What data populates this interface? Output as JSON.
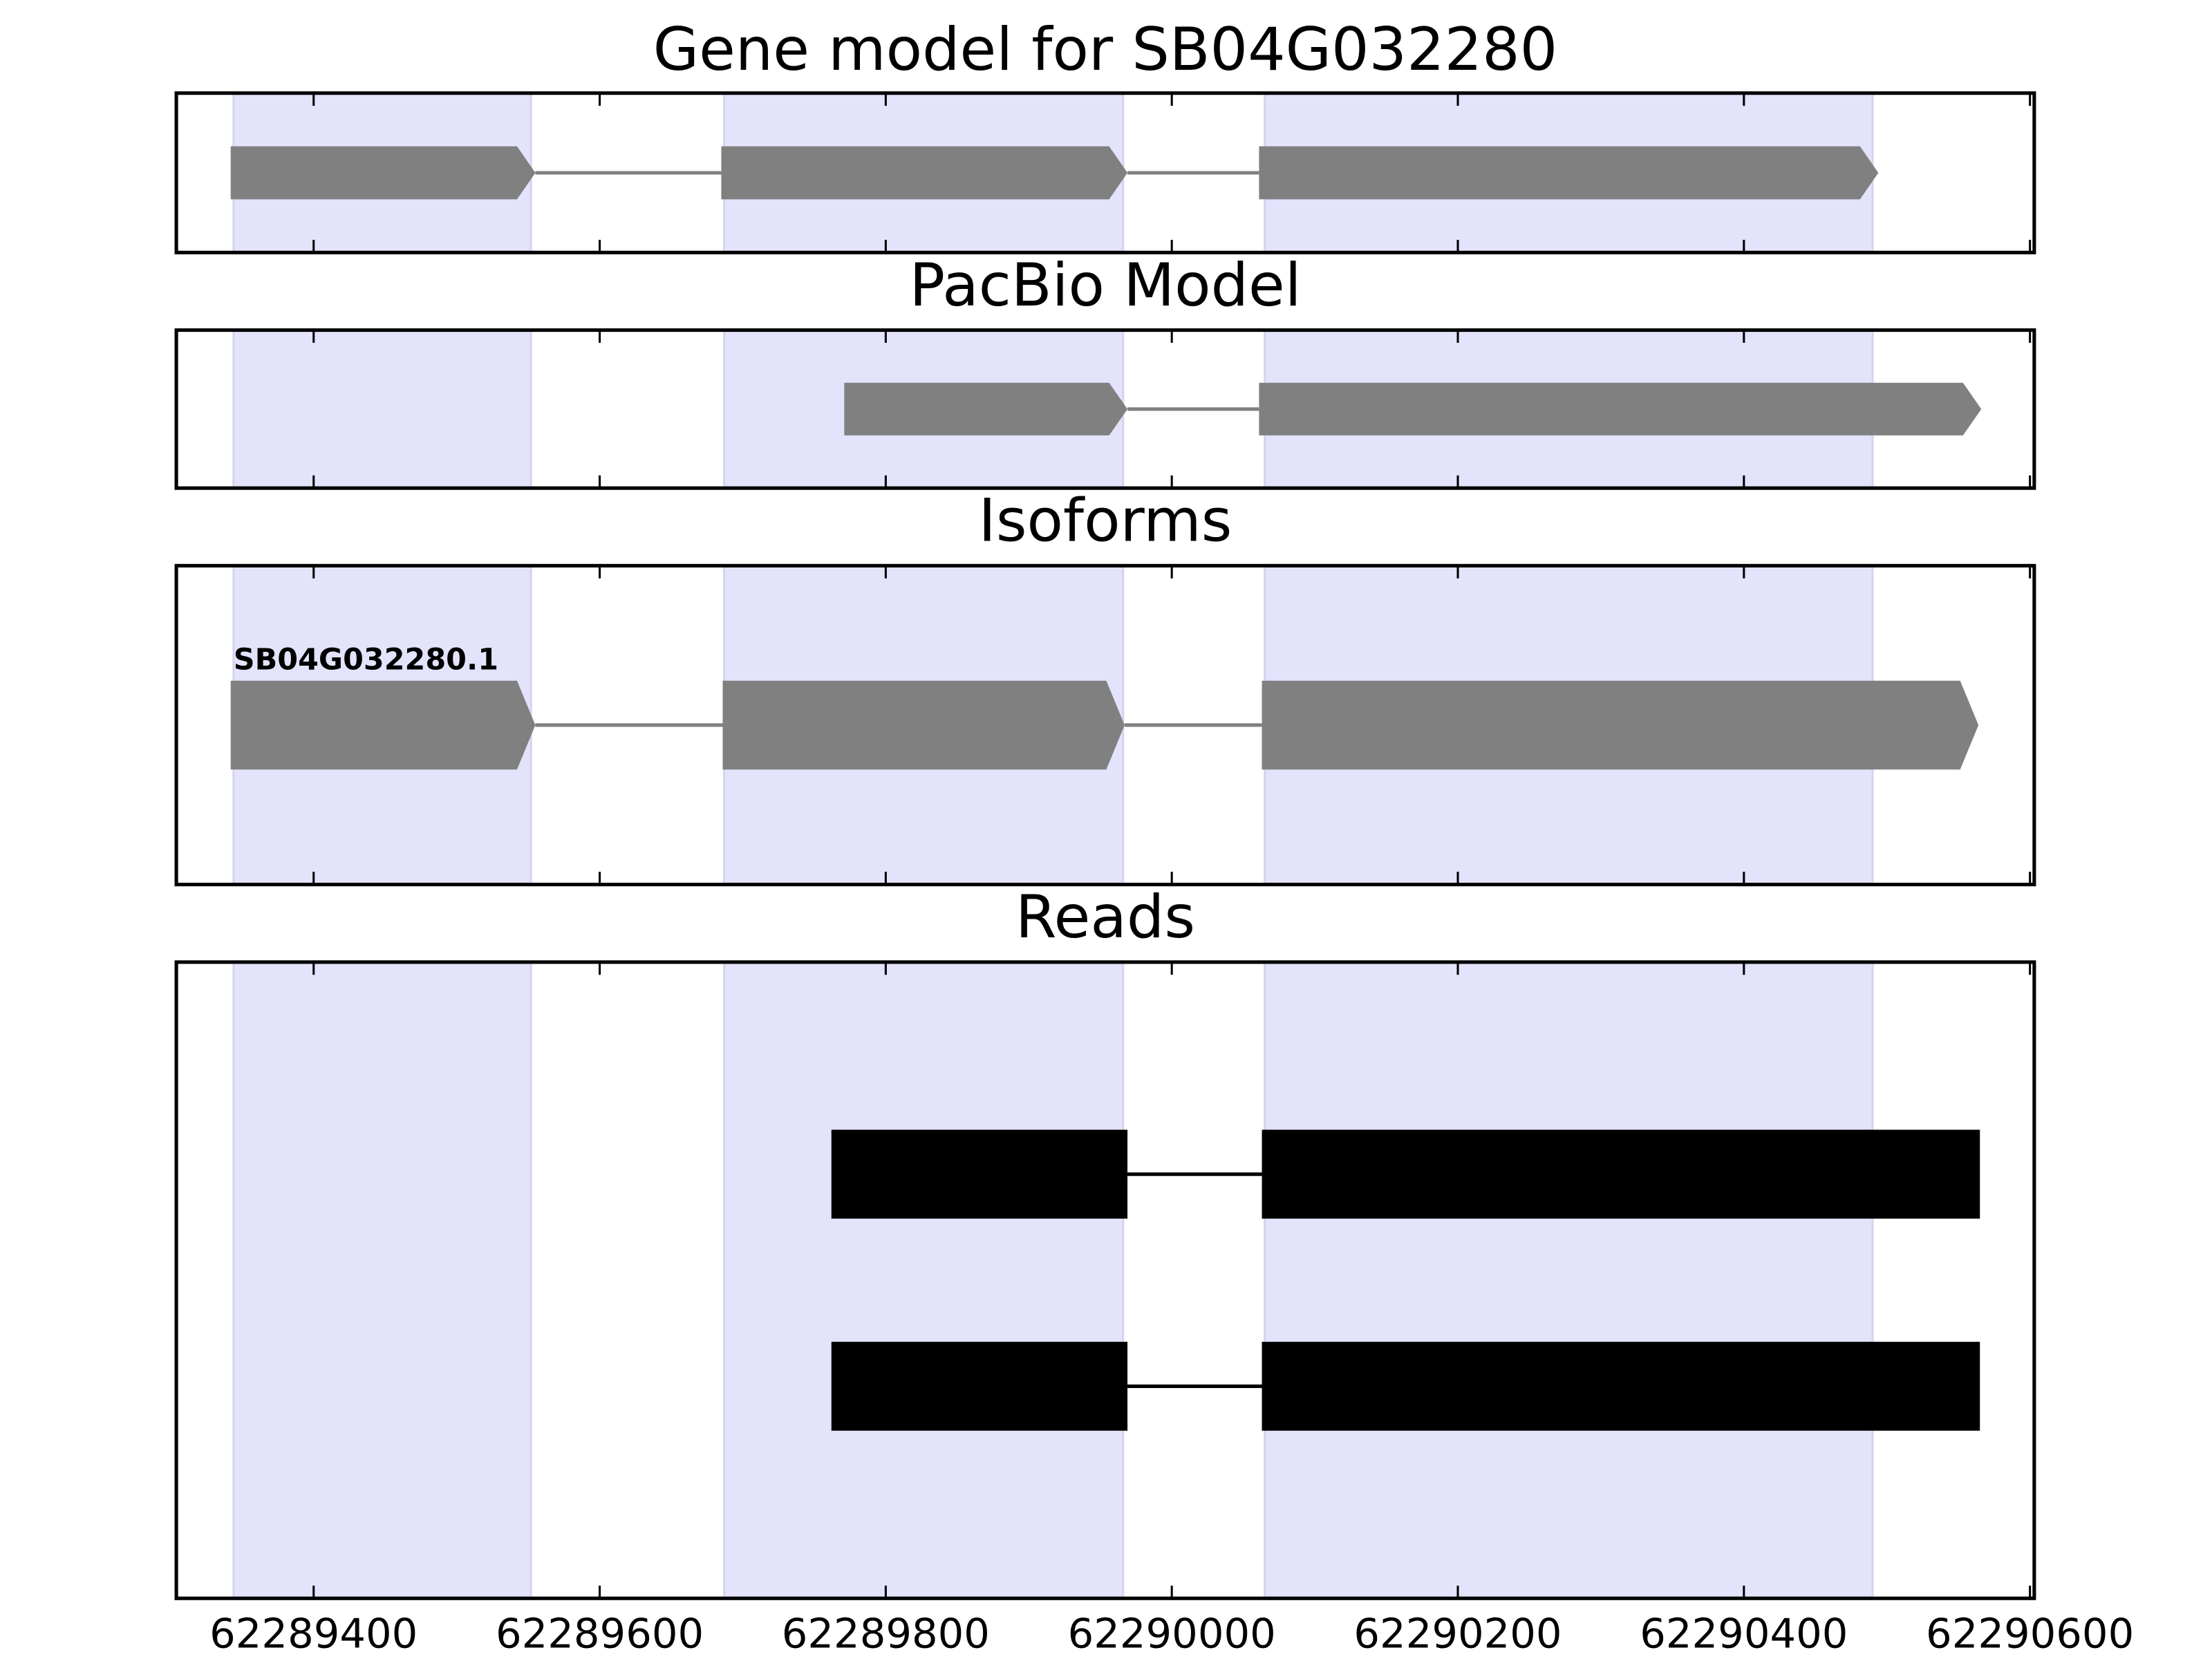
{
  "chart_data": {
    "type": "gene-tracks",
    "xlim": [
      62289304,
      62290603
    ],
    "xticks": [
      62289400,
      62289600,
      62289800,
      62290000,
      62290200,
      62290400,
      62290600
    ],
    "exon_regions": [
      [
        62289344,
        62289552
      ],
      [
        62289687,
        62289966
      ],
      [
        62290065,
        62290490
      ]
    ],
    "region_color": "#e3e3fc",
    "panels": [
      {
        "title": "Gene model for SB04G032280",
        "color": "#808080",
        "shape": "arrow",
        "features": [
          {
            "exons": [
              [
                62289342,
                62289555
              ],
              [
                62289685,
                62289969
              ],
              [
                62290061,
                62290494
              ]
            ]
          }
        ]
      },
      {
        "title": "PacBio Model",
        "color": "#808080",
        "shape": "arrow",
        "features": [
          {
            "exons": [
              [
                62289771,
                62289969
              ],
              [
                62290061,
                62290566
              ]
            ]
          }
        ]
      },
      {
        "title": "Isoforms",
        "color": "#808080",
        "shape": "arrow",
        "features": [
          {
            "label": "SB04G032280.1",
            "exons": [
              [
                62289342,
                62289555
              ],
              [
                62289686,
                62289967
              ],
              [
                62290063,
                62290564
              ]
            ]
          }
        ]
      },
      {
        "title": "Reads",
        "color": "#000000",
        "shape": "box",
        "features": [
          {
            "exons": [
              [
                62289762,
                62289969
              ],
              [
                62290063,
                62290565
              ]
            ]
          },
          {
            "exons": [
              [
                62289762,
                62289969
              ],
              [
                62290063,
                62290565
              ]
            ]
          }
        ]
      }
    ]
  }
}
